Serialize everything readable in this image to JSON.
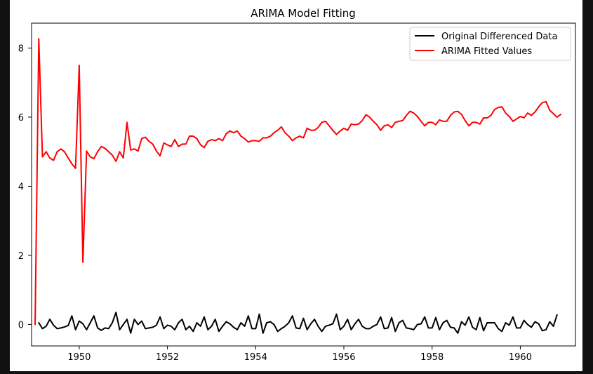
{
  "chart_data": {
    "type": "line",
    "title": "ARIMA Model Fitting",
    "xlabel": "",
    "ylabel": "",
    "xlim": [
      1948.92,
      1961.25
    ],
    "ylim": [
      -0.62,
      8.72
    ],
    "x_ticks": [
      "1950",
      "1952",
      "1954",
      "1956",
      "1958",
      "1960"
    ],
    "x_tick_values": [
      1950,
      1952,
      1954,
      1956,
      1958,
      1960
    ],
    "y_ticks": [
      "0",
      "2",
      "4",
      "6",
      "8"
    ],
    "y_tick_values": [
      0,
      2,
      4,
      6,
      8
    ],
    "grid": false,
    "legend_position": "upper right",
    "x_start": 1949.0,
    "x_step": 0.08333,
    "series": [
      {
        "name": "Original Differenced Data",
        "color": "#000000",
        "values": [
          null,
          0.05,
          -0.12,
          -0.05,
          0.15,
          -0.02,
          -0.12,
          -0.1,
          -0.07,
          -0.03,
          0.25,
          -0.15,
          0.1,
          0.02,
          -0.15,
          0.05,
          0.25,
          -0.1,
          -0.17,
          -0.1,
          -0.12,
          0.05,
          0.35,
          -0.15,
          0.0,
          0.15,
          -0.25,
          0.15,
          0.0,
          0.1,
          -0.12,
          -0.1,
          -0.08,
          -0.02,
          0.22,
          -0.12,
          -0.02,
          -0.05,
          -0.15,
          0.05,
          0.15,
          -0.15,
          -0.05,
          -0.2,
          0.05,
          -0.05,
          0.22,
          -0.15,
          -0.05,
          0.15,
          -0.2,
          -0.05,
          0.08,
          0.02,
          -0.08,
          -0.15,
          0.05,
          -0.05,
          0.25,
          -0.12,
          -0.12,
          0.3,
          -0.25,
          0.05,
          0.08,
          0.0,
          -0.2,
          -0.12,
          -0.05,
          0.05,
          0.25,
          -0.1,
          -0.12,
          0.18,
          -0.15,
          0.02,
          0.15,
          -0.05,
          -0.2,
          -0.05,
          -0.02,
          0.02,
          0.3,
          -0.15,
          -0.05,
          0.15,
          -0.15,
          0.02,
          0.15,
          -0.05,
          -0.12,
          -0.12,
          -0.05,
          0.0,
          0.22,
          -0.12,
          -0.1,
          0.2,
          -0.2,
          0.05,
          0.12,
          -0.1,
          -0.12,
          -0.15,
          0.0,
          0.02,
          0.22,
          -0.1,
          -0.1,
          0.2,
          -0.15,
          0.05,
          0.12,
          -0.08,
          -0.1,
          -0.25,
          0.08,
          -0.02,
          0.22,
          -0.08,
          -0.15,
          0.2,
          -0.18,
          0.05,
          0.05,
          0.05,
          -0.12,
          -0.2,
          0.05,
          -0.02,
          0.22,
          -0.1,
          -0.1,
          0.12,
          0.0,
          -0.08,
          0.08,
          0.02,
          -0.18,
          -0.15,
          0.08,
          -0.05,
          0.28
        ]
      },
      {
        "name": "ARIMA Fitted Values",
        "color": "#ff0000",
        "values": [
          0.0,
          8.27,
          4.85,
          5.0,
          4.82,
          4.75,
          5.0,
          5.08,
          5.0,
          4.82,
          4.65,
          4.52,
          7.5,
          1.8,
          5.02,
          4.85,
          4.8,
          5.0,
          5.15,
          5.1,
          5.0,
          4.9,
          4.72,
          5.0,
          4.82,
          5.85,
          5.05,
          5.08,
          5.02,
          5.38,
          5.42,
          5.3,
          5.22,
          5.02,
          4.88,
          5.25,
          5.2,
          5.15,
          5.35,
          5.15,
          5.22,
          5.22,
          5.45,
          5.45,
          5.38,
          5.2,
          5.12,
          5.3,
          5.35,
          5.32,
          5.38,
          5.32,
          5.52,
          5.6,
          5.55,
          5.6,
          5.45,
          5.38,
          5.28,
          5.32,
          5.32,
          5.3,
          5.4,
          5.4,
          5.45,
          5.55,
          5.62,
          5.72,
          5.55,
          5.45,
          5.32,
          5.4,
          5.45,
          5.4,
          5.68,
          5.62,
          5.62,
          5.7,
          5.85,
          5.88,
          5.75,
          5.62,
          5.5,
          5.6,
          5.68,
          5.62,
          5.8,
          5.78,
          5.8,
          5.9,
          6.07,
          6.0,
          5.88,
          5.78,
          5.62,
          5.75,
          5.78,
          5.7,
          5.85,
          5.88,
          5.9,
          6.05,
          6.17,
          6.12,
          6.02,
          5.88,
          5.75,
          5.85,
          5.85,
          5.78,
          5.92,
          5.88,
          5.88,
          6.05,
          6.15,
          6.17,
          6.08,
          5.9,
          5.75,
          5.85,
          5.85,
          5.8,
          5.98,
          5.98,
          6.05,
          6.22,
          6.28,
          6.3,
          6.12,
          6.02,
          5.88,
          5.95,
          6.02,
          5.98,
          6.12,
          6.05,
          6.15,
          6.3,
          6.42,
          6.45,
          6.2,
          6.1,
          6.0,
          6.08
        ]
      }
    ]
  }
}
